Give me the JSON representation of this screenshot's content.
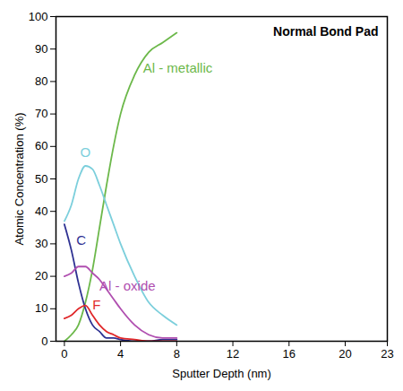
{
  "chart_data": {
    "type": "line",
    "title": "Normal Bond Pad",
    "x_label": "Sputter Depth (nm)",
    "y_label": "Atomic Concentration (%)",
    "xlim": [
      -0.6,
      23
    ],
    "xticks": [
      0,
      4,
      8,
      12,
      16,
      20,
      23
    ],
    "ylim": [
      0,
      100
    ],
    "yticks": [
      0,
      10,
      20,
      30,
      40,
      50,
      60,
      70,
      80,
      90,
      100
    ],
    "grid": false,
    "x": [
      0,
      0.5,
      1,
      1.5,
      2,
      2.5,
      3,
      3.5,
      4,
      5,
      6,
      7,
      8
    ],
    "series": [
      {
        "name": "Al - metallic",
        "color": "#6cb84a",
        "values": [
          0,
          2,
          5,
          12,
          22,
          35,
          48,
          60,
          70,
          82,
          89,
          92,
          95
        ]
      },
      {
        "name": "O",
        "color": "#7ccfdc",
        "values": [
          37,
          42,
          50,
          54,
          53,
          48,
          42,
          36,
          30,
          20,
          12,
          8,
          5
        ]
      },
      {
        "name": "C",
        "color": "#2e3192",
        "values": [
          36,
          28,
          18,
          10,
          5,
          3,
          1,
          1,
          0.5,
          0,
          0,
          0.5,
          0.5
        ]
      },
      {
        "name": "Al - oxide",
        "color": "#b04fb0",
        "values": [
          20,
          21,
          23,
          23,
          21,
          19,
          16,
          13,
          10,
          5,
          2,
          1,
          1
        ]
      },
      {
        "name": "F",
        "color": "#e0282a",
        "values": [
          7,
          8,
          10,
          11,
          8,
          5,
          3,
          2,
          1,
          0.5,
          0,
          0,
          0
        ]
      }
    ]
  }
}
